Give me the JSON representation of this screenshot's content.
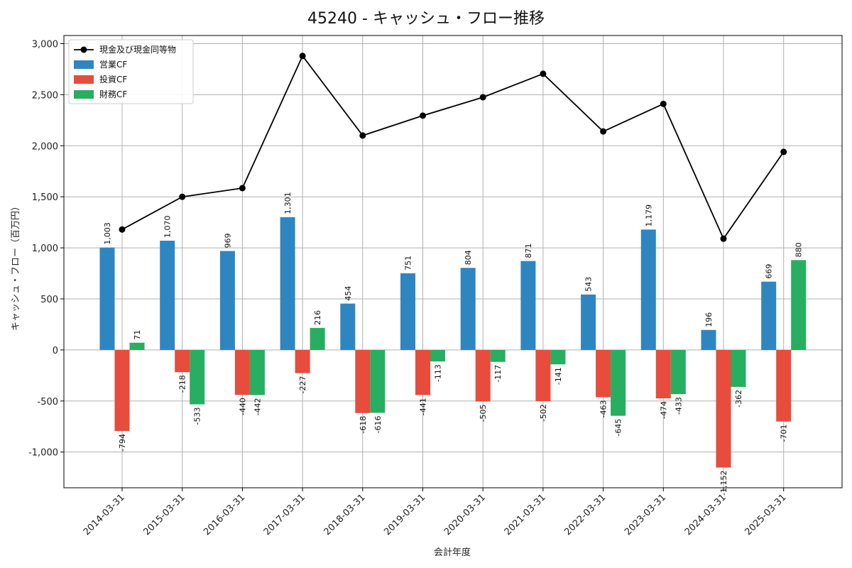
{
  "chart_data": {
    "type": "bar",
    "title": "45240 - キャッシュ・フロー推移",
    "xlabel": "会計年度",
    "ylabel": "キャッシュ・フロー（百万円）",
    "categories": [
      "2014-03-31",
      "2015-03-31",
      "2016-03-31",
      "2017-03-31",
      "2018-03-31",
      "2019-03-31",
      "2020-03-31",
      "2021-03-31",
      "2022-03-31",
      "2023-03-31",
      "2024-03-31",
      "2025-03-31"
    ],
    "series": [
      {
        "name": "営業CF",
        "kind": "bar",
        "color": "#2e86c1",
        "values": [
          1003,
          1070,
          969,
          1301,
          454,
          751,
          804,
          871,
          543,
          1179,
          196,
          669
        ]
      },
      {
        "name": "投資CF",
        "kind": "bar",
        "color": "#e74c3c",
        "values": [
          -794,
          -218,
          -440,
          -227,
          -618,
          -441,
          -505,
          -502,
          -463,
          -474,
          -1152,
          -701
        ]
      },
      {
        "name": "財務CF",
        "kind": "bar",
        "color": "#27ae60",
        "values": [
          71,
          -533,
          -442,
          216,
          -616,
          -113,
          -117,
          -141,
          -645,
          -433,
          -362,
          880
        ]
      },
      {
        "name": "現金及び現金同等物",
        "kind": "line",
        "color": "#000000",
        "values": [
          1180,
          1500,
          1585,
          2880,
          2100,
          2295,
          2475,
          2705,
          2140,
          2410,
          1090,
          1940
        ]
      }
    ],
    "bar_labels": {
      "営業CF": [
        "1,003",
        "1,070",
        "969",
        "1,301",
        "454",
        "751",
        "804",
        "871",
        "543",
        "1,179",
        "196",
        "669"
      ],
      "投資CF": [
        "-794",
        "-218",
        "-440",
        "-227",
        "-618",
        "-441",
        "-505",
        "-502",
        "-463",
        "-474",
        "-1,152",
        "-701"
      ],
      "財務CF": [
        "71",
        "-533",
        "-442",
        "216",
        "-616",
        "-113",
        "-117",
        "-141",
        "-645",
        "-433",
        "-362",
        "880"
      ]
    },
    "ylim": [
      -1350,
      3080
    ],
    "yticks": [
      -1000,
      -500,
      0,
      500,
      1000,
      1500,
      2000,
      2500,
      3000
    ],
    "ytick_labels": [
      "-1,000",
      "-500",
      "0",
      "500",
      "1,000",
      "1,500",
      "2,000",
      "2,500",
      "3,000"
    ],
    "grid": true,
    "legend_position": "top-left",
    "legend": [
      "現金及び現金同等物",
      "営業CF",
      "投資CF",
      "財務CF"
    ]
  }
}
